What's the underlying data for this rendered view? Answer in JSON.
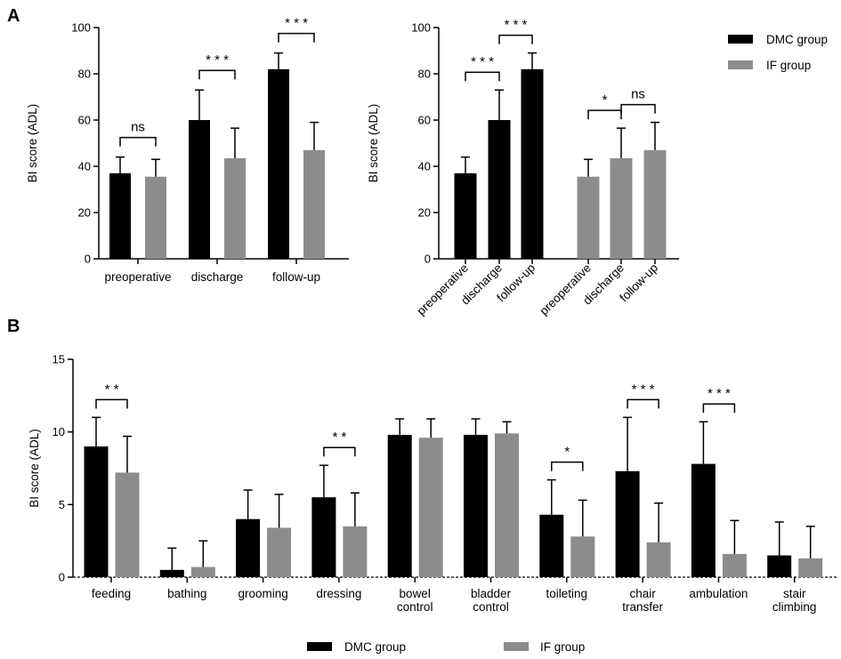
{
  "colors": {
    "dmc": "#000000",
    "if": "#8c8c8c",
    "axis": "#000000"
  },
  "panels": {
    "a": "A",
    "b": "B"
  },
  "legend_a": {
    "dmc": "DMC group",
    "if": "IF group"
  },
  "legend_b": {
    "dmc": "DMC group",
    "if": "IF group"
  },
  "chart_data": [
    {
      "id": "a1",
      "type": "bar",
      "ylabel": "BI score (ADL)",
      "ylim": [
        0,
        100
      ],
      "yticks": [
        "0",
        "20",
        "40",
        "60",
        "80",
        "100"
      ],
      "categories": [
        "preoperative",
        "discharge",
        "follow-up"
      ],
      "series": [
        {
          "name": "DMC group",
          "values": [
            37,
            60,
            82
          ],
          "errors": [
            7,
            13,
            7
          ]
        },
        {
          "name": "IF group",
          "values": [
            35.5,
            43.5,
            47
          ],
          "errors": [
            7.5,
            13,
            12
          ]
        }
      ],
      "significance": [
        {
          "category": 0,
          "label": "ns"
        },
        {
          "category": 1,
          "label": "* * *"
        },
        {
          "category": 2,
          "label": "* * *"
        }
      ]
    },
    {
      "id": "a2",
      "type": "bar",
      "ylabel": "BI score (ADL)",
      "ylim": [
        0,
        100
      ],
      "yticks": [
        "0",
        "20",
        "40",
        "60",
        "80",
        "100"
      ],
      "categories": [
        "preoperative",
        "discharge",
        "follow-up",
        "preoperative",
        "discharge",
        "follow-up"
      ],
      "groups": [
        "DMC group",
        "DMC group",
        "DMC group",
        "IF group",
        "IF group",
        "IF group"
      ],
      "values": [
        37,
        60,
        82,
        35.5,
        43.5,
        47
      ],
      "errors": [
        7,
        13,
        7,
        7.5,
        13,
        12
      ],
      "significance": [
        {
          "from": 0,
          "to": 1,
          "label": "* * *"
        },
        {
          "from": 1,
          "to": 2,
          "label": "* * *"
        },
        {
          "from": 3,
          "to": 4,
          "label": "*"
        },
        {
          "from": 4,
          "to": 5,
          "label": "ns"
        }
      ]
    },
    {
      "id": "b",
      "type": "bar",
      "ylabel": "BI score (ADL)",
      "ylim": [
        0,
        15
      ],
      "yticks": [
        "0",
        "5",
        "10",
        "15"
      ],
      "categories": [
        "feeding",
        "bathing",
        "grooming",
        "dressing",
        "bowel\ncontrol",
        "bladder\ncontrol",
        "toileting",
        "chair\ntransfer",
        "ambulation",
        "stair\nclimbing"
      ],
      "series": [
        {
          "name": "DMC group",
          "values": [
            9.0,
            0.5,
            4.0,
            5.5,
            9.8,
            9.8,
            4.3,
            7.3,
            7.8,
            1.5
          ],
          "errors": [
            2.0,
            1.5,
            2.0,
            2.2,
            1.1,
            1.1,
            2.4,
            3.7,
            2.9,
            2.3
          ]
        },
        {
          "name": "IF group",
          "values": [
            7.2,
            0.7,
            3.4,
            3.5,
            9.6,
            9.9,
            2.8,
            2.4,
            1.6,
            1.3
          ],
          "errors": [
            2.5,
            1.8,
            2.3,
            2.3,
            1.3,
            0.8,
            2.5,
            2.7,
            2.3,
            2.2
          ]
        }
      ],
      "significance": [
        {
          "category": 0,
          "label": "* *"
        },
        {
          "category": 3,
          "label": "* *"
        },
        {
          "category": 6,
          "label": "*"
        },
        {
          "category": 7,
          "label": "* * *"
        },
        {
          "category": 8,
          "label": "* * *"
        }
      ]
    }
  ]
}
